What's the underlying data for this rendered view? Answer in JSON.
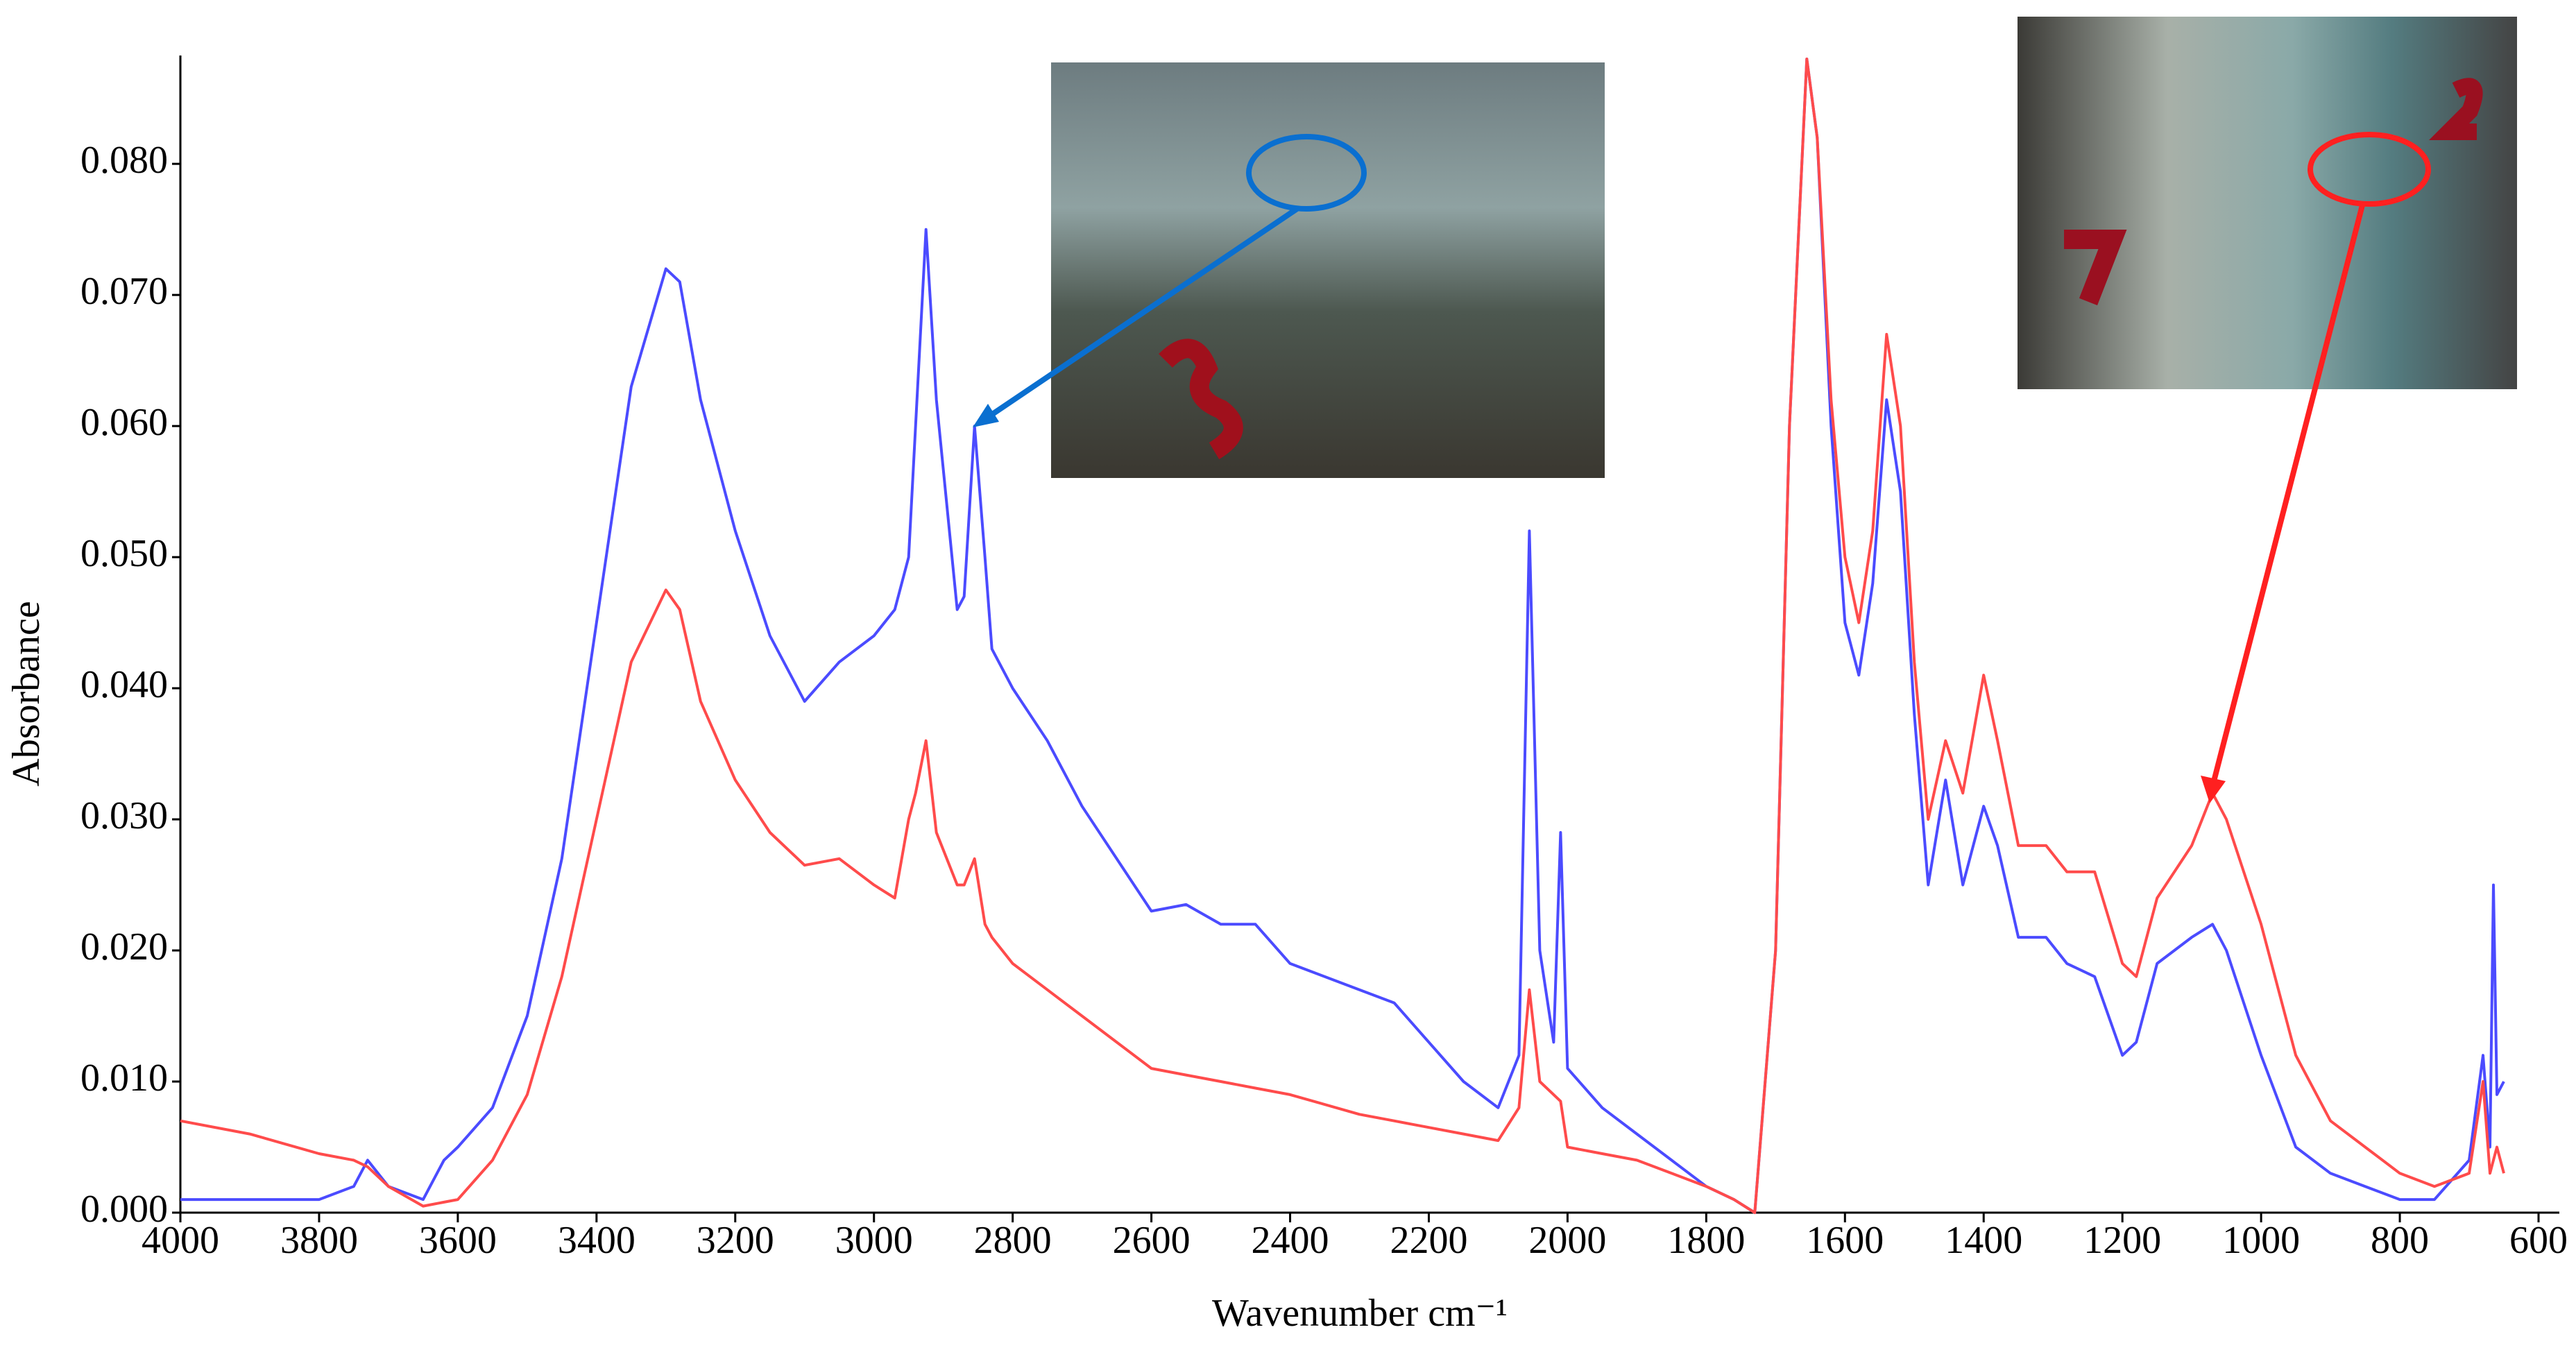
{
  "chart_data": {
    "type": "line",
    "xlabel": "Wavenumber cm⁻¹",
    "ylabel": "Absorbance",
    "x": [
      4000,
      3900,
      3800,
      3750,
      3730,
      3700,
      3650,
      3620,
      3600,
      3550,
      3500,
      3450,
      3400,
      3350,
      3300,
      3280,
      3250,
      3200,
      3150,
      3100,
      3050,
      3000,
      2970,
      2950,
      2940,
      2925,
      2910,
      2880,
      2870,
      2855,
      2840,
      2830,
      2800,
      2750,
      2700,
      2600,
      2550,
      2500,
      2450,
      2400,
      2300,
      2250,
      2200,
      2150,
      2100,
      2070,
      2055,
      2040,
      2020,
      2010,
      2000,
      1950,
      1900,
      1850,
      1800,
      1760,
      1730,
      1700,
      1680,
      1655,
      1640,
      1620,
      1600,
      1580,
      1560,
      1540,
      1520,
      1500,
      1480,
      1455,
      1430,
      1400,
      1380,
      1350,
      1310,
      1280,
      1240,
      1200,
      1180,
      1150,
      1100,
      1070,
      1050,
      1000,
      950,
      900,
      850,
      800,
      750,
      700,
      680,
      670,
      665,
      660,
      650
    ],
    "series": [
      {
        "color": "#4b4bff",
        "values": [
          0.001,
          0.001,
          0.001,
          0.002,
          0.004,
          0.002,
          0.001,
          0.004,
          0.005,
          0.008,
          0.015,
          0.027,
          0.045,
          0.063,
          0.072,
          0.071,
          0.062,
          0.052,
          0.044,
          0.039,
          0.042,
          0.044,
          0.046,
          0.05,
          0.06,
          0.075,
          0.062,
          0.046,
          0.047,
          0.06,
          0.05,
          0.043,
          0.04,
          0.036,
          0.031,
          0.023,
          0.0235,
          0.022,
          0.022,
          0.019,
          0.017,
          0.016,
          0.013,
          0.01,
          0.008,
          0.012,
          0.052,
          0.02,
          0.013,
          0.029,
          0.011,
          0.008,
          0.006,
          0.004,
          0.002,
          0.001,
          0.0,
          0.02,
          0.06,
          0.088,
          0.082,
          0.06,
          0.045,
          0.041,
          0.048,
          0.062,
          0.055,
          0.038,
          0.025,
          0.033,
          0.025,
          0.031,
          0.028,
          0.021,
          0.021,
          0.019,
          0.018,
          0.012,
          0.013,
          0.019,
          0.021,
          0.022,
          0.02,
          0.012,
          0.005,
          0.003,
          0.002,
          0.001,
          0.001,
          0.004,
          0.012,
          0.005,
          0.025,
          0.009,
          0.01
        ]
      },
      {
        "color": "#ff4b4b",
        "values": [
          0.007,
          0.006,
          0.0045,
          0.004,
          0.0035,
          0.002,
          0.0005,
          0.0008,
          0.001,
          0.004,
          0.009,
          0.018,
          0.03,
          0.042,
          0.0475,
          0.046,
          0.039,
          0.033,
          0.029,
          0.0265,
          0.027,
          0.025,
          0.024,
          0.03,
          0.032,
          0.036,
          0.029,
          0.025,
          0.025,
          0.027,
          0.022,
          0.021,
          0.019,
          0.017,
          0.015,
          0.011,
          0.0105,
          0.01,
          0.0095,
          0.009,
          0.0075,
          0.007,
          0.0065,
          0.006,
          0.0055,
          0.008,
          0.017,
          0.01,
          0.009,
          0.0085,
          0.005,
          0.0045,
          0.004,
          0.003,
          0.002,
          0.001,
          0.0,
          0.02,
          0.06,
          0.088,
          0.082,
          0.062,
          0.05,
          0.045,
          0.052,
          0.067,
          0.06,
          0.042,
          0.03,
          0.036,
          0.032,
          0.041,
          0.036,
          0.028,
          0.028,
          0.026,
          0.026,
          0.019,
          0.018,
          0.024,
          0.028,
          0.032,
          0.03,
          0.022,
          0.012,
          0.007,
          0.005,
          0.003,
          0.002,
          0.003,
          0.01,
          0.003,
          0.004,
          0.005,
          0.003
        ]
      }
    ],
    "xlim": [
      4000,
      600
    ],
    "xticks": [
      4000,
      3800,
      3600,
      3400,
      3200,
      3000,
      2800,
      2600,
      2400,
      2200,
      2000,
      1800,
      1600,
      1400,
      1200,
      1000,
      800,
      600
    ],
    "ylim": [
      0,
      0.088
    ],
    "yticks": [
      {
        "value": 0,
        "label": "0.000"
      },
      {
        "value": 0.01,
        "label": "0.010"
      },
      {
        "value": 0.02,
        "label": "0.020"
      },
      {
        "value": 0.03,
        "label": "0.030"
      },
      {
        "value": 0.04,
        "label": "0.040"
      },
      {
        "value": 0.05,
        "label": "0.050"
      },
      {
        "value": 0.06,
        "label": "0.060"
      },
      {
        "value": 0.07,
        "label": "0.070"
      },
      {
        "value": 0.08,
        "label": "0.080"
      }
    ],
    "grid": false
  }
}
